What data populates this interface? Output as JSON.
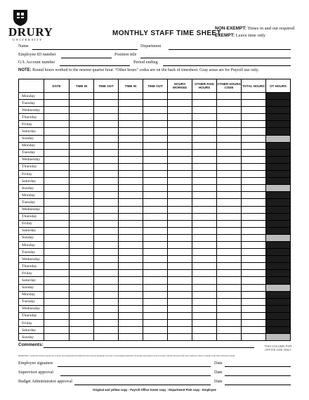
{
  "header": {
    "logo_word": "DRURY",
    "logo_sub": "UNIVERSITY",
    "title": "MONTHLY STAFF TIME SHEET",
    "nonexempt_label": "NON-EXEMPT:",
    "nonexempt_text": "Times in and out required",
    "exempt_label": "EXEMPT:",
    "exempt_text": "Leave time only"
  },
  "fields": {
    "name": "Name",
    "department": "Department",
    "employee_id": "Employee ID number",
    "position_title": "Position title",
    "gl_account": "G/L Account number",
    "period_ending": "Period ending"
  },
  "note": {
    "label": "NOTE:",
    "text": "Round hours worked to the nearest quarter hour. \"Other hours\" codes are on the back of timesheet. Gray areas are for Payroll use only."
  },
  "table": {
    "columns": [
      "",
      "DATE",
      "TIME IN",
      "TIME OUT",
      "TIME IN",
      "TIME OUT",
      "HOURS WORKED",
      "OTHER PAID HOURS",
      "OTHER HOURS CODE",
      "TOTAL HOURS",
      "OT HOURS"
    ],
    "days": [
      "Monday",
      "Tuesday",
      "Wednesday",
      "Thursday",
      "Friday",
      "Saturday",
      "Sunday",
      "Monday",
      "Tuesday",
      "Wednesday",
      "Thursday",
      "Friday",
      "Saturday",
      "Sunday",
      "Monday",
      "Tuesday",
      "Wednesday",
      "Thursday",
      "Friday",
      "Saturday",
      "Sunday",
      "Monday",
      "Tuesday",
      "Wednesday",
      "Thursday",
      "Friday",
      "Saturday",
      "Sunday",
      "Monday",
      "Tuesday",
      "Wednesday",
      "Thursday",
      "Friday",
      "Saturday",
      "Sunday"
    ]
  },
  "comments": {
    "label": "Comments",
    "office_use": "THIS COLUMN FOR OFFICE USE ONLY"
  },
  "certification": "DRURY RES: I certify that all hours reported are accurate, and I understand that falsification may result in disciplinary action up to and including termination. Work times and absences are in accordance with the University staff policy handbook, which is available on the Drury University website.",
  "signatures": {
    "employee": "Employee signature",
    "supervisor": "Supervisor approval",
    "budget_admin": "Budget Administrator approval",
    "date": "Date"
  },
  "footer": "Original and yellow copy - Payroll Office    Green copy - Department    Pink copy - Employee"
}
